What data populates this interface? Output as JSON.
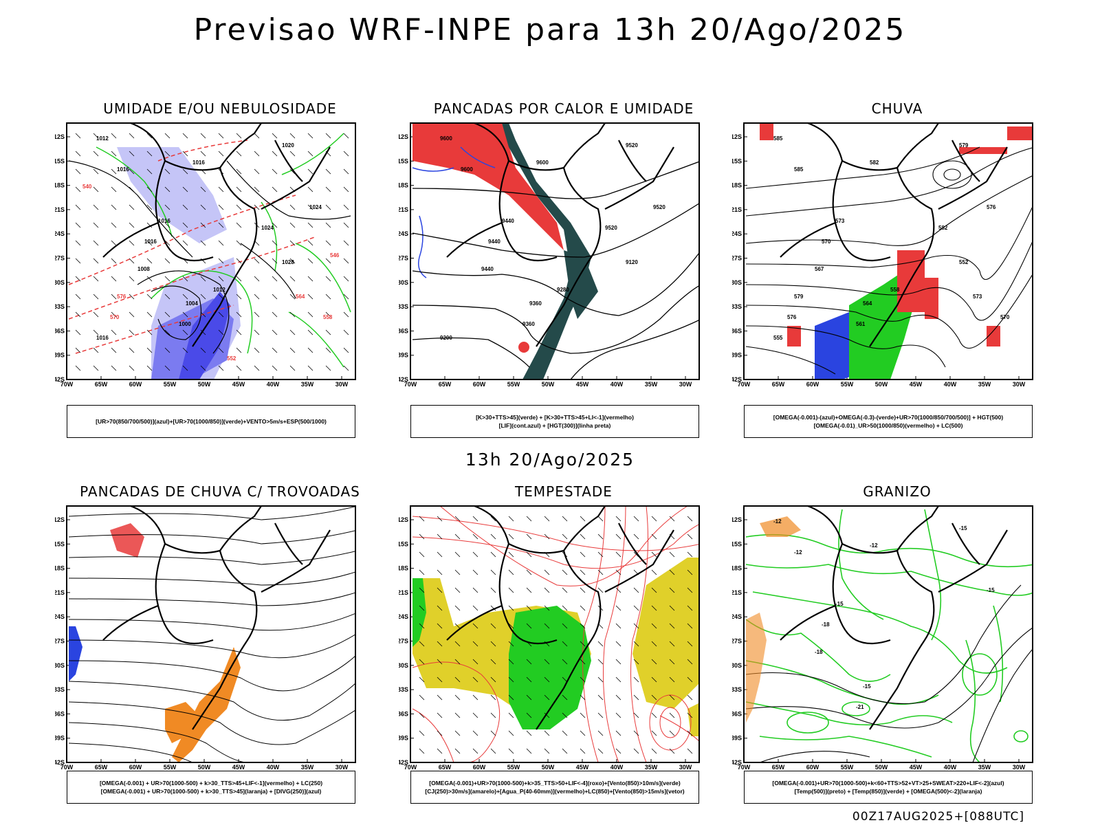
{
  "header": {
    "title": "Previsao WRF-INPE  para 13h 20/Ago/2025"
  },
  "section_date": "13h 20/Ago/2025",
  "footer": {
    "run": "00Z17AUG2025+[088UTC]"
  },
  "axes": {
    "lat_labels": [
      "12S",
      "15S",
      "18S",
      "21S",
      "24S",
      "27S",
      "30S",
      "33S",
      "36S",
      "39S",
      "42S"
    ],
    "lon_labels": [
      "70W",
      "65W",
      "60W",
      "55W",
      "50W",
      "45W",
      "40W",
      "35W",
      "30W"
    ]
  },
  "panels": [
    {
      "title": "UMIDADE E/OU NEBULOSIDADE",
      "legend": [
        "[UR>70(850/700/500)](azul)+[UR>70(1000/850)](verde)+VENTO>5m/s+ESP(500/1000)"
      ],
      "contour_labels": [
        "1012",
        "1016",
        "1016",
        "1020",
        "1024",
        "1016",
        "1016",
        "1008",
        "1004",
        "1000",
        "1012",
        "1016",
        "1028",
        "1024",
        "576",
        "570",
        "564",
        "558",
        "552",
        "546",
        "540"
      ]
    },
    {
      "title": "PANCADAS POR CALOR E UMIDADE",
      "legend": [
        "[K>30+TTS>45](verde) + [K>30+TTS>45+LI<-1](vermelho)",
        "[LIF](cont.azul) + [HGT(300)](linha preta)"
      ],
      "contour_labels": [
        "9600",
        "9600",
        "9600",
        "9520",
        "9520",
        "9440",
        "9440",
        "9440",
        "9360",
        "9360",
        "9280",
        "9200",
        "9120",
        "9520"
      ]
    },
    {
      "title": "CHUVA",
      "legend": [
        "[OMEGA(-0.001)-(azul)+OMEGA(-0.3)-(verde)+UR>70(1000/850/700/500)] + HGT(500)",
        "[OMEGA(-0.01)_UR>50(1000/850)(vermelho) + LC(500)"
      ],
      "contour_labels": [
        "585",
        "585",
        "582",
        "579",
        "576",
        "573",
        "570",
        "567",
        "564",
        "561",
        "558",
        "555",
        "552",
        "582",
        "579",
        "576",
        "573",
        "570"
      ]
    },
    {
      "title": "PANCADAS DE CHUVA C/ TROVOADAS",
      "legend": [
        "[OMEGA(-0.001) + UR>70(1000-500) + k>30_TTS>45+LIF<-1](vermelho) + LC(250)",
        "[OMEGA(-0.001) + UR>70(1000-500) + k>30_TTS>45](laranja) + [DIVG(250)](azul)"
      ],
      "contour_labels": []
    },
    {
      "title": "TEMPESTADE",
      "legend": [
        "[OMEGA(-0.001)+UR>70(1000-500)+k>35_TTS>50+LIF<-4](roxo)+[Vento(850)>10m/s](verde)",
        "[CJ(250)>30m/s](amarelo)+[Agua_P(40-60mm)](vermelho)+LC(850)+[Vento(850)>15m/s](vetor)"
      ],
      "contour_labels": []
    },
    {
      "title": "GRANIZO",
      "legend": [
        "[OMEGA(-0.001)+UR>70(1000-500)+k<60+TTS>52+VT>25+SWEAT>220+LIF<-2](azul)",
        "[Temp(500)](preto) + [Temp(850)](verde) + [OMEGA(500)<-2](laranja)"
      ],
      "contour_labels": [
        "-12",
        "-12",
        "-12",
        "-15",
        "-15",
        "-15",
        "-18",
        "-18",
        "-15",
        "-21"
      ]
    }
  ],
  "colors": {
    "humidity_blue": "#7b7bf0",
    "humidity_light": "#c5c5f7",
    "green": "#22cc22",
    "red": "#e83a3a",
    "dark_teal": "#244a4a",
    "orange": "#f08a24",
    "yellow": "#e0d02a",
    "blue": "#2a44e0"
  }
}
